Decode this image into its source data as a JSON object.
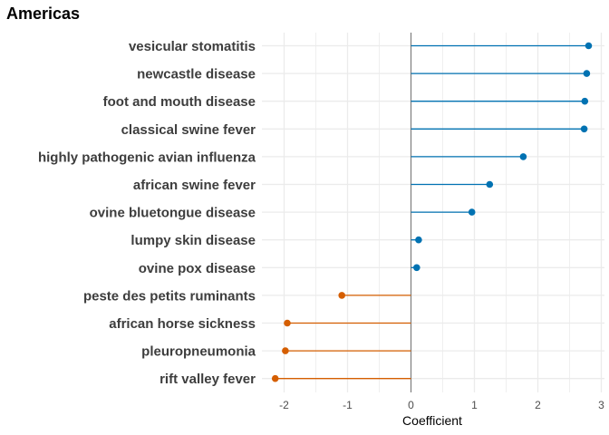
{
  "chart_data": {
    "type": "lollipop",
    "title": "Americas",
    "xlabel": "Coefficient",
    "ylabel": "",
    "xlim": [
      -2.35,
      3.05
    ],
    "x_ticks": [
      -2,
      -1,
      0,
      1,
      2,
      3
    ],
    "x_tick_labels": [
      "-2",
      "-1",
      "0",
      "1",
      "2",
      "3"
    ],
    "baseline": 0,
    "grid": true,
    "colors": {
      "positive": "#0072B2",
      "negative": "#D55E00",
      "zero_line": "#808080",
      "grid": "#ebebeb"
    },
    "categories": [
      "vesicular stomatitis",
      "newcastle disease",
      "foot and mouth disease",
      "classical swine fever",
      "highly pathogenic avian influenza",
      "african swine fever",
      "ovine bluetongue disease",
      "lumpy skin disease",
      "ovine pox disease",
      "peste des petits ruminants",
      "african horse sickness",
      "pleuropneumonia",
      "rift valley fever"
    ],
    "values": [
      2.8,
      2.77,
      2.74,
      2.73,
      1.77,
      1.24,
      0.96,
      0.12,
      0.09,
      -1.09,
      -1.95,
      -1.98,
      -2.14
    ]
  }
}
